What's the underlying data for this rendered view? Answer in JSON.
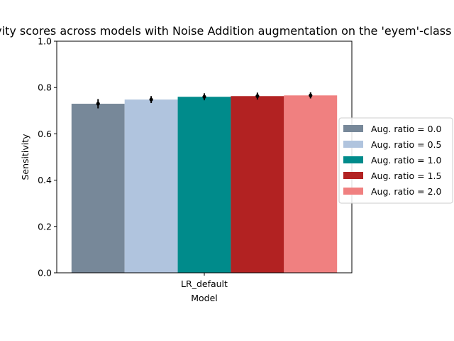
{
  "chart_data": {
    "type": "bar",
    "title": "Sensitivity scores across models with Noise Addition augmentation on the 'eyem'-class",
    "xlabel": "Model",
    "ylabel": "Sensitivity",
    "categories": [
      "LR_default"
    ],
    "ylim": [
      0.0,
      1.0
    ],
    "yticks": [
      "0.0",
      "0.2",
      "0.4",
      "0.6",
      "0.8",
      "1.0"
    ],
    "legend_position": "right",
    "series": [
      {
        "name": "Aug. ratio = 0.0",
        "values": [
          0.73
        ],
        "error": [
          0.02
        ],
        "color": "#778899"
      },
      {
        "name": "Aug. ratio = 0.5",
        "values": [
          0.748
        ],
        "error": [
          0.015
        ],
        "color": "#b0c4de"
      },
      {
        "name": "Aug. ratio = 1.0",
        "values": [
          0.76
        ],
        "error": [
          0.015
        ],
        "color": "#008b8b"
      },
      {
        "name": "Aug. ratio = 1.5",
        "values": [
          0.763
        ],
        "error": [
          0.015
        ],
        "color": "#b22222"
      },
      {
        "name": "Aug. ratio = 2.0",
        "values": [
          0.766
        ],
        "error": [
          0.013
        ],
        "color": "#f08080"
      }
    ]
  }
}
